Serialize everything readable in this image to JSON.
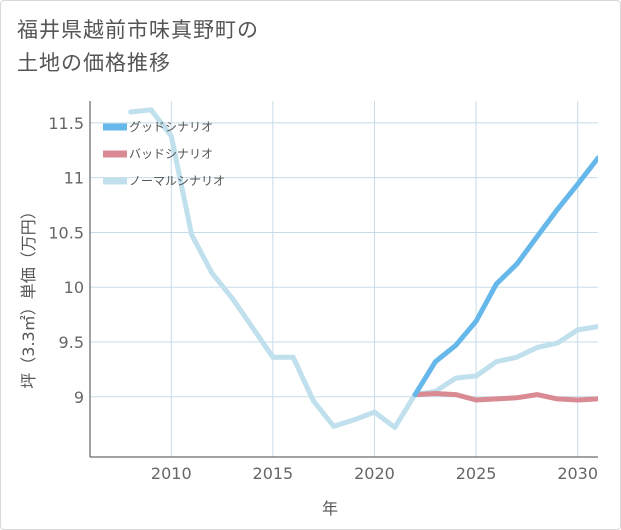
{
  "title": {
    "line1": "福井県越前市味真野町の",
    "line2": "土地の価格推移"
  },
  "colors": {
    "good": "#66b7ea",
    "bad": "#d98a93",
    "normal": "#bfe0ec",
    "grid": "#c5dde9",
    "axis": "#444444"
  },
  "chart_data": {
    "type": "line",
    "xlabel": "年",
    "ylabel": "坪（3.3㎡）単価（万円）",
    "xlim": [
      2006,
      2031
    ],
    "ylim": [
      8.45,
      11.7
    ],
    "xticks": [
      2010,
      2015,
      2020,
      2025,
      2030
    ],
    "yticks": [
      9,
      9.5,
      10,
      10.5,
      11,
      11.5
    ],
    "xtick_labels": [
      "2010",
      "2015",
      "2020",
      "2025",
      "2030"
    ],
    "ytick_labels": [
      "9",
      "9.5",
      "10",
      "10.5",
      "11",
      "11.5"
    ],
    "grid": true,
    "legend_position": "top-left",
    "series": [
      {
        "name": "グッドシナリオ",
        "color_key": "good",
        "x": [
          2022,
          2023,
          2024,
          2025,
          2026,
          2027,
          2028,
          2029,
          2030,
          2031
        ],
        "y": [
          9.02,
          9.32,
          9.47,
          9.69,
          10.03,
          10.21,
          10.46,
          10.71,
          10.94,
          11.18
        ]
      },
      {
        "name": "バッドシナリオ",
        "color_key": "bad",
        "x": [
          2022,
          2023,
          2024,
          2025,
          2026,
          2027,
          2028,
          2029,
          2030,
          2031
        ],
        "y": [
          9.02,
          9.03,
          9.02,
          8.97,
          8.98,
          8.99,
          9.02,
          8.98,
          8.97,
          8.98
        ]
      },
      {
        "name": "ノーマルシナリオ",
        "color_key": "normal",
        "x": [
          2008,
          2009,
          2010,
          2011,
          2012,
          2013,
          2014,
          2015,
          2016,
          2017,
          2018,
          2019,
          2020,
          2021,
          2022,
          2023,
          2024,
          2025,
          2026,
          2027,
          2028,
          2029,
          2030,
          2031
        ],
        "y": [
          11.6,
          11.62,
          11.38,
          10.48,
          10.13,
          9.9,
          9.63,
          9.36,
          9.36,
          8.96,
          8.73,
          8.79,
          8.86,
          8.72,
          9.02,
          9.05,
          9.17,
          9.19,
          9.32,
          9.36,
          9.45,
          9.49,
          9.61,
          9.64
        ]
      }
    ]
  }
}
